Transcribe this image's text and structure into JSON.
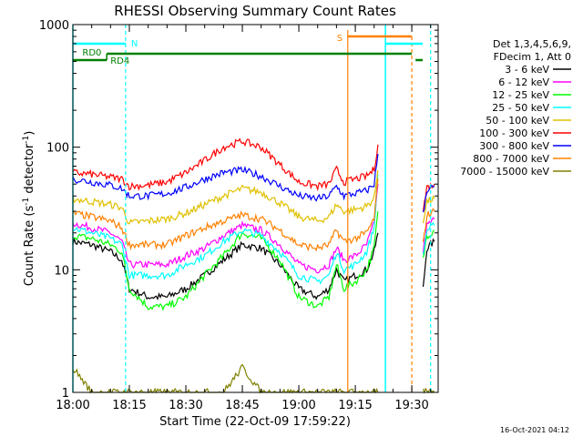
{
  "chart_data": {
    "type": "line",
    "title": "RHESSI Observing Summary Count Rates",
    "xlabel": "Start Time (22-Oct-09 17:59:22)",
    "ylabel_prefix": "Count Rate (s",
    "ylabel_sup1": "-1",
    "ylabel_mid": " detector",
    "ylabel_sup2": "-1",
    "ylabel_suffix": ")",
    "yscale": "log",
    "xlim": [
      "18:00",
      "19:37"
    ],
    "ylim": [
      1,
      1000
    ],
    "x_ticks": [
      "18:00",
      "18:15",
      "18:30",
      "18:45",
      "19:00",
      "19:15",
      "19:30"
    ],
    "y_ticks": [
      "1",
      "10",
      "100",
      "1000"
    ],
    "legend_header": [
      "Det 1,3,4,5,6,9,",
      "FDecim 1, Att 0"
    ],
    "footer": "16-Oct-2021 04:12",
    "x": [
      "18:00",
      "18:05",
      "18:10",
      "18:13",
      "18:15",
      "18:20",
      "18:25",
      "18:30",
      "18:35",
      "18:40",
      "18:45",
      "18:50",
      "18:55",
      "19:00",
      "19:05",
      "19:08",
      "19:10",
      "19:12",
      "19:15",
      "19:18",
      "19:20",
      "19:21"
    ],
    "x_tail": [
      "19:33",
      "19:34",
      "19:35",
      "19:36"
    ],
    "series": [
      {
        "name": "3 - 6 keV",
        "color": "#000000",
        "values": [
          17,
          16,
          14,
          12,
          7,
          6,
          6,
          7,
          9,
          12,
          16,
          15,
          11,
          7,
          6,
          7,
          10,
          8,
          9,
          10,
          14,
          20
        ],
        "tail": [
          7,
          15,
          16,
          17
        ]
      },
      {
        "name": "6 - 12 keV",
        "color": "#ff00ff",
        "values": [
          24,
          22,
          20,
          17,
          11,
          11,
          11,
          13,
          15,
          19,
          23,
          21,
          16,
          11,
          10,
          11,
          15,
          12,
          13,
          16,
          24,
          50
        ],
        "tail": [
          14,
          23,
          24,
          26
        ]
      },
      {
        "name": "12 - 25 keV",
        "color": "#00ff00",
        "values": [
          19,
          18,
          16,
          14,
          7,
          5,
          5,
          6,
          9,
          13,
          20,
          18,
          12,
          6,
          5,
          6,
          11,
          7,
          8,
          10,
          15,
          30
        ],
        "tail": [
          12,
          19,
          20,
          21
        ]
      },
      {
        "name": "25 - 50 keV",
        "color": "#00ffff",
        "values": [
          22,
          20,
          18,
          16,
          9,
          9,
          9,
          11,
          13,
          17,
          21,
          19,
          14,
          9,
          8,
          9,
          14,
          10,
          11,
          14,
          22,
          60
        ],
        "tail": [
          13,
          21,
          22,
          23
        ]
      },
      {
        "name": "50 - 100 keV",
        "color": "#e0c000",
        "values": [
          38,
          36,
          34,
          32,
          24,
          25,
          26,
          29,
          34,
          40,
          46,
          43,
          35,
          27,
          25,
          27,
          34,
          30,
          31,
          33,
          38,
          65
        ],
        "tail": [
          25,
          36,
          37,
          38
        ]
      },
      {
        "name": "100 - 300 keV",
        "color": "#ff0000",
        "values": [
          62,
          60,
          57,
          55,
          48,
          49,
          52,
          62,
          78,
          100,
          112,
          100,
          72,
          52,
          48,
          50,
          66,
          52,
          55,
          58,
          66,
          105
        ],
        "tail": [
          30,
          47,
          48,
          50
        ]
      },
      {
        "name": "300 - 800 keV",
        "color": "#0000ff",
        "values": [
          55,
          52,
          49,
          46,
          40,
          40,
          42,
          47,
          55,
          62,
          65,
          58,
          48,
          40,
          38,
          40,
          48,
          40,
          42,
          44,
          50,
          88
        ],
        "tail": [
          28,
          45,
          46,
          48
        ]
      },
      {
        "name": "800 - 7000 keV",
        "color": "#ff8000",
        "values": [
          29,
          27,
          25,
          22,
          16,
          16,
          16,
          19,
          22,
          25,
          28,
          26,
          21,
          16,
          15,
          16,
          21,
          17,
          18,
          20,
          26,
          55
        ],
        "tail": [
          16,
          28,
          29,
          30
        ]
      },
      {
        "name": "7000 - 15000 keV",
        "color": "#808000",
        "values": [
          1.6,
          1,
          1,
          1,
          1,
          1,
          1,
          1,
          1,
          1,
          1.6,
          1,
          1,
          1,
          1,
          1,
          1,
          1,
          1,
          1,
          1,
          1
        ],
        "tail": [
          1,
          1,
          1,
          1
        ]
      }
    ],
    "flags": [
      {
        "label": "N",
        "color": "#00ffff"
      },
      {
        "label": "RD0",
        "color": "#008000"
      },
      {
        "label": "RD4",
        "color": "#008000"
      },
      {
        "label": "S",
        "color": "#ff8000"
      }
    ],
    "gap_times": [
      "18:00",
      "18:14",
      "19:23",
      "19:35"
    ],
    "saa_times": [
      "19:13",
      "19:30"
    ]
  }
}
